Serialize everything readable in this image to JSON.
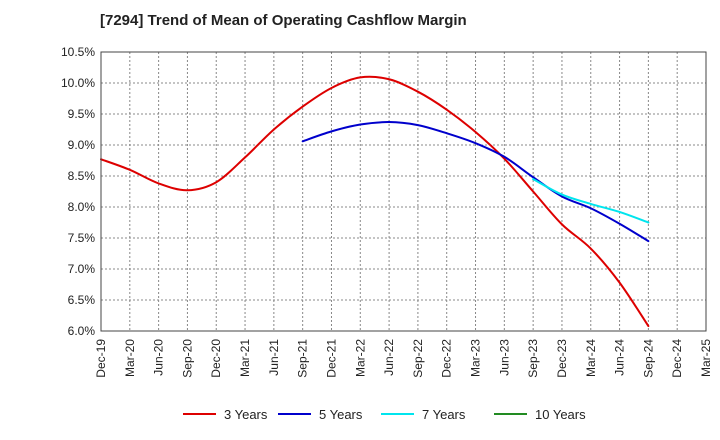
{
  "chart_data": {
    "type": "line",
    "title": "[7294]  Trend of Mean of Operating Cashflow Margin",
    "xlabel": "",
    "ylabel": "",
    "grid": true,
    "legend_position": "bottom",
    "ylim": [
      6.0,
      10.5
    ],
    "y_ticks": [
      "6.0%",
      "6.5%",
      "7.0%",
      "7.5%",
      "8.0%",
      "8.5%",
      "9.0%",
      "9.5%",
      "10.0%",
      "10.5%"
    ],
    "categories": [
      "Dec-19",
      "Mar-20",
      "Jun-20",
      "Sep-20",
      "Dec-20",
      "Mar-21",
      "Jun-21",
      "Sep-21",
      "Dec-21",
      "Mar-22",
      "Jun-22",
      "Sep-22",
      "Dec-22",
      "Mar-23",
      "Jun-23",
      "Sep-23",
      "Dec-23",
      "Mar-24",
      "Jun-24",
      "Sep-24",
      "Dec-24",
      "Mar-25"
    ],
    "series": [
      {
        "name": "3 Years",
        "color": "#dd0000",
        "values": [
          8.77,
          8.6,
          8.38,
          8.27,
          8.4,
          8.8,
          9.25,
          9.62,
          9.92,
          10.09,
          10.06,
          9.86,
          9.57,
          9.21,
          8.78,
          8.25,
          7.72,
          7.33,
          6.78,
          6.08,
          null,
          null
        ]
      },
      {
        "name": "5 Years",
        "color": "#0000cc",
        "values": [
          null,
          null,
          null,
          null,
          null,
          null,
          null,
          9.06,
          9.22,
          9.33,
          9.37,
          9.32,
          9.19,
          9.03,
          8.81,
          8.48,
          8.17,
          7.98,
          7.73,
          7.45,
          null,
          null
        ]
      },
      {
        "name": "7 Years",
        "color": "#00e5ee",
        "values": [
          null,
          null,
          null,
          null,
          null,
          null,
          null,
          null,
          null,
          null,
          null,
          null,
          null,
          null,
          null,
          8.45,
          8.2,
          8.05,
          7.92,
          7.75,
          null,
          null
        ]
      },
      {
        "name": "10 Years",
        "color": "#228b22",
        "values": [
          null,
          null,
          null,
          null,
          null,
          null,
          null,
          null,
          null,
          null,
          null,
          null,
          null,
          null,
          null,
          null,
          null,
          null,
          null,
          null,
          null,
          null
        ]
      }
    ]
  }
}
